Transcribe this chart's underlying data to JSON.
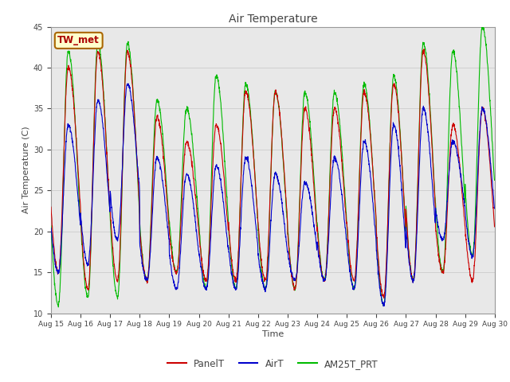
{
  "title": "Air Temperature",
  "xlabel": "Time",
  "ylabel": "Air Temperature (C)",
  "ylim": [
    10,
    45
  ],
  "yticks": [
    10,
    15,
    20,
    25,
    30,
    35,
    40,
    45
  ],
  "start_day": 15,
  "end_day": 30,
  "num_days": 15,
  "label_color": "#aa0000",
  "site_label": "TW_met",
  "site_box_facecolor": "#ffffcc",
  "site_box_edgecolor": "#aa6600",
  "grid_color": "#d0d0d0",
  "background_color": "#e8e8e8",
  "line_PanelT_color": "#cc0000",
  "line_AirT_color": "#0000cc",
  "line_AM25T_color": "#00bb00",
  "title_color": "#444444",
  "tick_color": "#444444",
  "daily_min_PanelT": [
    15,
    13,
    14,
    14,
    15,
    14,
    14,
    14,
    13,
    14,
    14,
    12,
    14,
    15,
    14
  ],
  "daily_max_PanelT": [
    40,
    42,
    42,
    34,
    31,
    33,
    37,
    37,
    35,
    35,
    37,
    38,
    42,
    33,
    35
  ],
  "daily_min_AirT": [
    15,
    16,
    19,
    14,
    13,
    13,
    13,
    13,
    14,
    14,
    13,
    11,
    14,
    19,
    17
  ],
  "daily_max_AirT": [
    33,
    36,
    38,
    29,
    27,
    28,
    29,
    27,
    26,
    29,
    31,
    33,
    35,
    31,
    35
  ],
  "daily_min_AM25T": [
    11,
    12,
    12,
    14,
    15,
    13,
    13,
    13,
    13,
    14,
    13,
    11,
    14,
    15,
    17
  ],
  "daily_max_AM25T": [
    42,
    43,
    43,
    36,
    35,
    39,
    38,
    37,
    37,
    37,
    38,
    39,
    43,
    42,
    45
  ]
}
